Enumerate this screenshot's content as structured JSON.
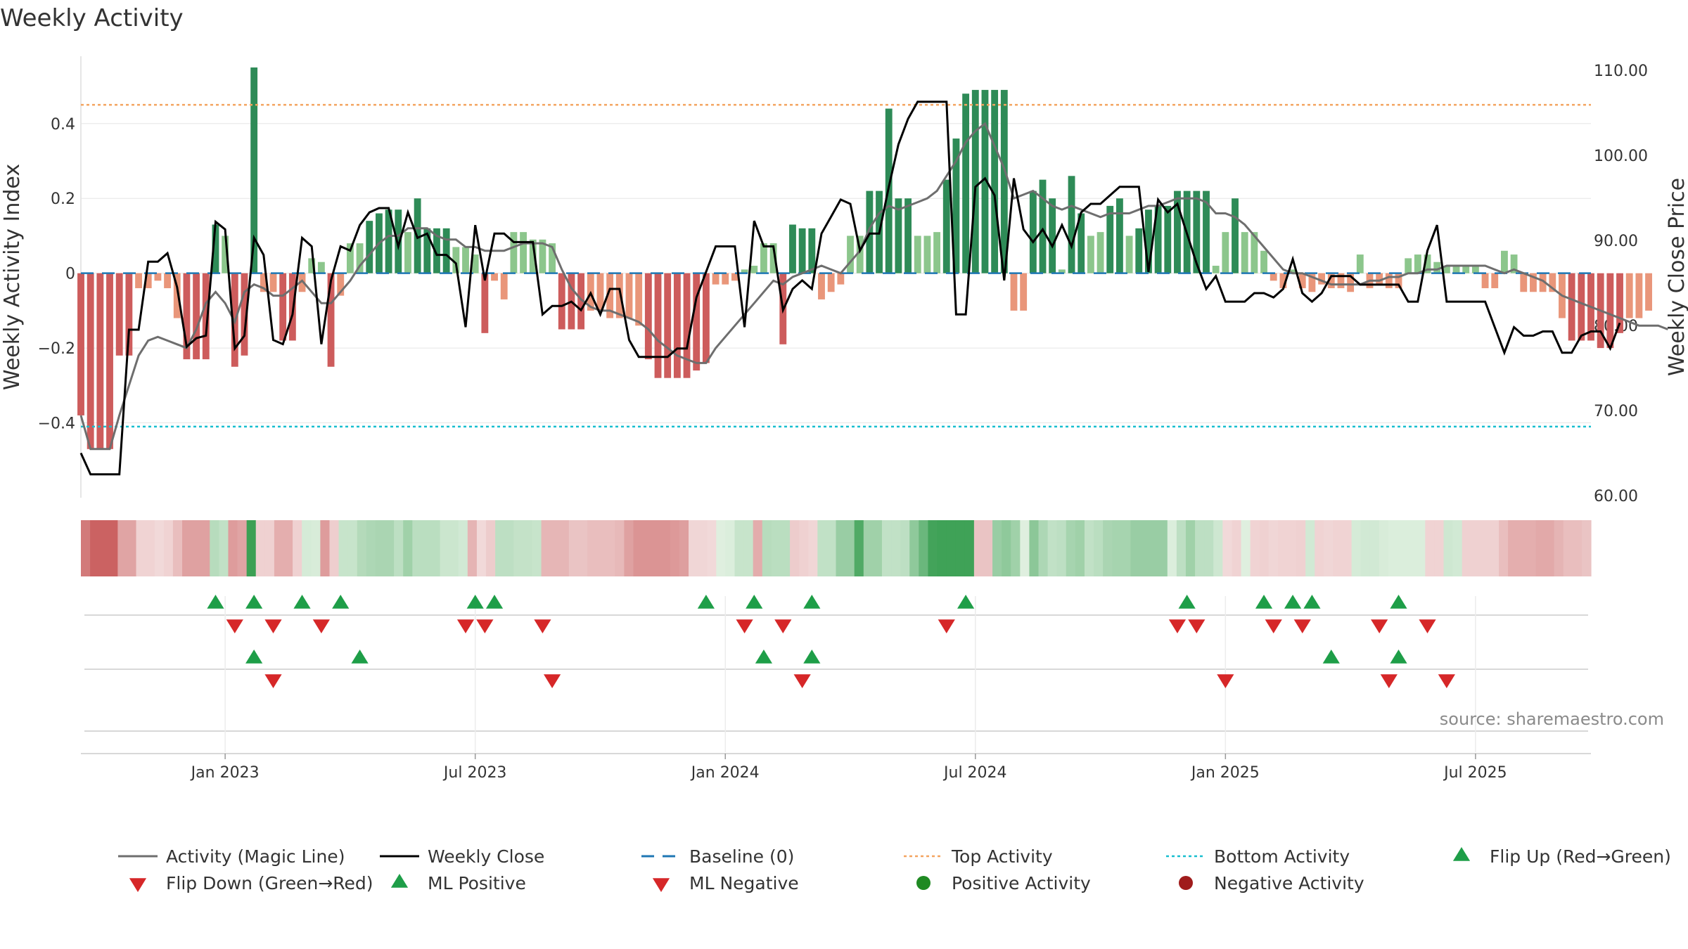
{
  "chart_data": {
    "type": "bar",
    "title": "Weekly Activity",
    "credit": "source: sharemaestro.com",
    "ylabel_left": "Weekly Activity Index",
    "ylabel_right": "Weekly Close Price",
    "y_left_range": [
      -0.6,
      0.58
    ],
    "y_left_ticks": [
      -0.4,
      -0.2,
      0,
      0.2,
      0.4
    ],
    "y_left_tick_labels": [
      "−0.4",
      "−0.2",
      "0",
      "0.2",
      "0.4"
    ],
    "y_right_range": [
      60,
      110
    ],
    "y_right_ticks": [
      60,
      70,
      80,
      90,
      100,
      110
    ],
    "y_right_tick_labels": [
      "60.00",
      "70.00",
      "80.00",
      "90.00",
      "100.00",
      "110.00"
    ],
    "x_range": [
      0,
      157
    ],
    "x_tick_positions": [
      15,
      41,
      67,
      93,
      119,
      145
    ],
    "x_tick_labels": [
      "Jan 2023",
      "Jul 2023",
      "Jan 2024",
      "Jul 2024",
      "Jan 2025",
      "Jul 2025"
    ],
    "top_activity": 0.45,
    "bottom_activity": -0.41,
    "baseline": 0,
    "colors": {
      "pos_strong": "#2e8b57",
      "pos_weak": "#8cc68c",
      "neg_strong": "#cd5c5c",
      "neg_weak": "#e9967a",
      "magic_line": "#6e6e6e",
      "close": "#000000",
      "baseline": "#1f77b4",
      "top": "#f4a460",
      "bottom": "#17becf",
      "up_marker": "#1e9e48",
      "down_marker": "#d62728",
      "grid": "#e5e5e5"
    },
    "activity": [
      -0.38,
      -0.47,
      -0.47,
      -0.47,
      -0.22,
      -0.22,
      -0.04,
      -0.04,
      -0.02,
      -0.04,
      -0.12,
      -0.23,
      -0.23,
      -0.23,
      0.13,
      0.1,
      -0.25,
      -0.22,
      0.55,
      -0.05,
      -0.05,
      -0.18,
      -0.18,
      -0.05,
      0.04,
      0.03,
      -0.25,
      -0.06,
      0.08,
      0.08,
      0.14,
      0.16,
      0.17,
      0.17,
      0.11,
      0.2,
      0.12,
      0.12,
      0.12,
      0.07,
      0.07,
      0.05,
      -0.16,
      -0.02,
      -0.07,
      0.11,
      0.11,
      0.09,
      0.09,
      0.08,
      -0.15,
      -0.15,
      -0.15,
      -0.1,
      -0.1,
      -0.12,
      -0.12,
      -0.12,
      -0.14,
      -0.23,
      -0.28,
      -0.28,
      -0.28,
      -0.28,
      -0.26,
      -0.24,
      -0.03,
      -0.03,
      -0.02,
      0.01,
      0.02,
      0.08,
      0.08,
      -0.19,
      0.13,
      0.12,
      0.12,
      -0.07,
      -0.05,
      -0.03,
      0.1,
      0.1,
      0.22,
      0.22,
      0.44,
      0.2,
      0.2,
      0.1,
      0.1,
      0.11,
      0.25,
      0.36,
      0.48,
      0.49,
      0.49,
      0.49,
      0.49,
      -0.1,
      -0.1,
      0.22,
      0.25,
      0.2,
      0.01,
      0.26,
      0.16,
      0.1,
      0.11,
      0.18,
      0.2,
      0.1,
      0.12,
      0.17,
      0.18,
      0.18,
      0.22,
      0.22,
      0.22,
      0.22,
      0.02,
      0.11,
      0.2,
      0.11,
      0.11,
      0.06,
      -0.02,
      -0.04,
      0.01,
      -0.04,
      -0.05,
      -0.03,
      -0.04,
      -0.04,
      -0.05,
      0.05,
      -0.04,
      -0.03,
      -0.04,
      -0.04,
      0.04,
      0.05,
      0.05,
      0.03,
      0.02,
      0.02,
      0.02,
      0.02,
      -0.04,
      -0.04,
      0.06,
      0.05,
      -0.05,
      -0.05,
      -0.05,
      -0.05,
      -0.12,
      -0.18,
      -0.18,
      -0.18,
      -0.2,
      -0.2,
      -0.16,
      -0.12,
      -0.12,
      -0.1
    ],
    "magic_line": [
      -0.38,
      -0.47,
      -0.47,
      -0.47,
      -0.38,
      -0.3,
      -0.22,
      -0.18,
      -0.17,
      -0.18,
      -0.19,
      -0.2,
      -0.15,
      -0.08,
      -0.05,
      -0.08,
      -0.13,
      -0.05,
      -0.03,
      -0.04,
      -0.06,
      -0.06,
      -0.04,
      -0.02,
      -0.05,
      -0.08,
      -0.08,
      -0.05,
      -0.02,
      0.02,
      0.05,
      0.08,
      0.1,
      0.1,
      0.12,
      0.12,
      0.12,
      0.1,
      0.09,
      0.09,
      0.07,
      0.07,
      0.06,
      0.06,
      0.06,
      0.07,
      0.08,
      0.08,
      0.08,
      0.07,
      0.01,
      -0.04,
      -0.07,
      -0.09,
      -0.1,
      -0.1,
      -0.11,
      -0.12,
      -0.13,
      -0.15,
      -0.18,
      -0.2,
      -0.22,
      -0.23,
      -0.24,
      -0.24,
      -0.2,
      -0.17,
      -0.14,
      -0.11,
      -0.08,
      -0.05,
      -0.02,
      -0.03,
      -0.01,
      0.0,
      0.01,
      0.02,
      0.01,
      0.0,
      0.03,
      0.06,
      0.12,
      0.16,
      0.18,
      0.17,
      0.18,
      0.19,
      0.2,
      0.22,
      0.26,
      0.3,
      0.35,
      0.38,
      0.4,
      0.34,
      0.28,
      0.2,
      0.21,
      0.22,
      0.2,
      0.18,
      0.17,
      0.18,
      0.17,
      0.16,
      0.15,
      0.16,
      0.16,
      0.16,
      0.17,
      0.18,
      0.18,
      0.19,
      0.2,
      0.2,
      0.2,
      0.19,
      0.16,
      0.16,
      0.15,
      0.13,
      0.1,
      0.07,
      0.04,
      0.01,
      0.0,
      0.0,
      -0.01,
      -0.02,
      -0.03,
      -0.03,
      -0.03,
      -0.03,
      -0.02,
      -0.02,
      -0.01,
      -0.01,
      0.0,
      0.0,
      0.01,
      0.01,
      0.02,
      0.02,
      0.02,
      0.02,
      0.02,
      0.01,
      0.0,
      0.01,
      0.0,
      -0.01,
      -0.02,
      -0.04,
      -0.06,
      -0.07,
      -0.08,
      -0.09,
      -0.1,
      -0.11,
      -0.12,
      -0.13,
      -0.14,
      -0.14,
      -0.14,
      -0.15
    ],
    "weekly_close": [
      65,
      62.5,
      62.5,
      62.5,
      62.5,
      79.5,
      79.5,
      87.5,
      87.5,
      88.5,
      84.5,
      77.5,
      78.5,
      78.8,
      92.2,
      91.3,
      77.3,
      78.8,
      90.3,
      88.3,
      78.3,
      77.8,
      81.3,
      90.3,
      89.3,
      77.8,
      85.3,
      89.3,
      88.8,
      91.8,
      93.3,
      93.8,
      93.8,
      89.3,
      93.3,
      90.3,
      90.8,
      88.3,
      88.3,
      87.3,
      79.8,
      91.8,
      85.3,
      90.8,
      90.8,
      89.8,
      89.8,
      89.8,
      81.3,
      82.3,
      82.3,
      82.8,
      81.8,
      83.8,
      81.3,
      84.3,
      84.3,
      78.3,
      76.3,
      76.3,
      76.3,
      76.3,
      77.3,
      77.3,
      83.3,
      86.3,
      89.3,
      89.3,
      89.3,
      79.8,
      92.3,
      89.3,
      89.3,
      81.8,
      84.3,
      85.3,
      84.3,
      90.8,
      92.8,
      94.8,
      94.3,
      88.8,
      90.8,
      90.8,
      96.3,
      101.3,
      104.3,
      106.3,
      106.3,
      106.3,
      106.3,
      81.3,
      81.3,
      96.3,
      97.3,
      95.3,
      85.3,
      97.3,
      91.3,
      89.8,
      91.3,
      89.3,
      91.8,
      89.3,
      93.3,
      94.3,
      94.3,
      95.3,
      96.3,
      96.3,
      96.3,
      86.3,
      94.8,
      93.3,
      94.3,
      90.8,
      87.3,
      84.3,
      85.8,
      82.8,
      82.8,
      82.8,
      83.8,
      83.8,
      83.3,
      84.3,
      87.8,
      83.8,
      82.8,
      83.8,
      85.8,
      85.8,
      85.8,
      84.8,
      84.8,
      84.8,
      84.8,
      84.8,
      82.8,
      82.8,
      88.8,
      91.8,
      82.8,
      82.8,
      82.8,
      82.8,
      82.8,
      79.8,
      76.8,
      79.8,
      78.8,
      78.8,
      79.3,
      79.3,
      76.8,
      76.8,
      78.8,
      79.3,
      79.3,
      77.3,
      80.3
    ],
    "heat_strip": "continuous colour band of weekly activity strength below the main panel",
    "marker_rows": {
      "row1_flip_up": [
        14,
        18,
        23,
        27,
        41,
        43,
        65,
        70,
        76,
        92,
        115,
        123,
        126,
        128,
        137
      ],
      "row1_flip_down": [
        16,
        20,
        25,
        40,
        42,
        48,
        69,
        73,
        90,
        114,
        116,
        124,
        127,
        135,
        140
      ],
      "row2_ml_positive": [
        18,
        29,
        71,
        76,
        130,
        137
      ],
      "row2_ml_negative": [
        20,
        49,
        75,
        119,
        136,
        142
      ]
    },
    "legend": [
      {
        "label": "Activity (Magic Line)",
        "style": "line-gray"
      },
      {
        "label": "Weekly Close",
        "style": "line-black"
      },
      {
        "label": "Baseline (0)",
        "style": "dash-blue"
      },
      {
        "label": "Top Activity",
        "style": "dot-orange"
      },
      {
        "label": "Bottom Activity",
        "style": "dot-cyan"
      },
      {
        "label": "Flip Up (Red→Green)",
        "style": "tri-up"
      },
      {
        "label": "Flip Down (Green→Red)",
        "style": "tri-down"
      },
      {
        "label": "ML Positive",
        "style": "tri-up"
      },
      {
        "label": "ML Negative",
        "style": "tri-down"
      },
      {
        "label": "Positive Activity",
        "style": "dot-green"
      },
      {
        "label": "Negative Activity",
        "style": "dot-red"
      }
    ]
  }
}
